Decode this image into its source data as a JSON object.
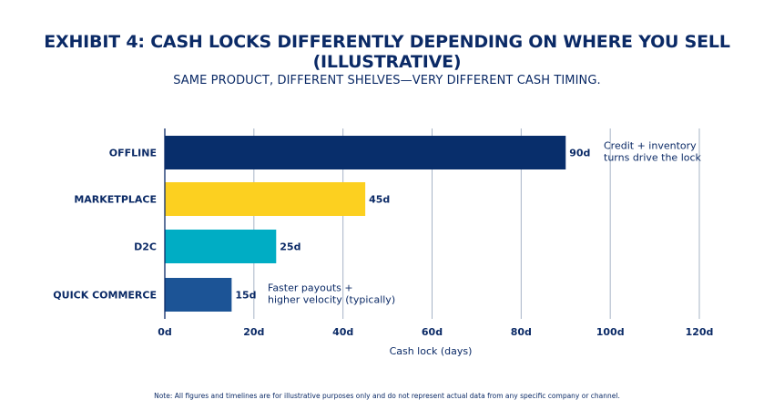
{
  "chart_data": {
    "type": "bar",
    "orientation": "horizontal",
    "title": "EXHIBIT 4: CASH LOCKS DIFFERENTLY DEPENDING ON WHERE YOU SELL (ILLUSTRATIVE)",
    "title_line1": "EXHIBIT 4: CASH LOCKS DIFFERENTLY DEPENDING ON WHERE YOU SELL",
    "title_line2": "(ILLUSTRATIVE)",
    "subtitle": "SAME PRODUCT, DIFFERENT SHELVES—VERY DIFFERENT CASH TIMING.",
    "categories": [
      "OFFLINE",
      "MARKETPLACE",
      "D2C",
      "QUICK COMMERCE"
    ],
    "values": [
      90,
      45,
      25,
      15
    ],
    "value_labels": [
      "90d",
      "45d",
      "25d",
      "15d"
    ],
    "colors": [
      "#082e6b",
      "#fcd020",
      "#00adc4",
      "#1c5496"
    ],
    "xlabel": "Cash lock (days)",
    "ylabel": "",
    "xlim": [
      0,
      120
    ],
    "xticks": [
      0,
      20,
      40,
      60,
      80,
      100,
      120
    ],
    "xtick_labels": [
      "0d",
      "20d",
      "40d",
      "60d",
      "80d",
      "100d",
      "120d"
    ],
    "grid": true,
    "annotations": [
      {
        "category": "OFFLINE",
        "lines": [
          "Credit + inventory",
          "turns drive the lock"
        ]
      },
      {
        "category": "QUICK COMMERCE",
        "lines": [
          "Faster payouts +",
          "higher velocity (typically)"
        ]
      }
    ],
    "note": "Note: All figures and timelines are for illustrative purposes only and do not represent actual data from any specific company or channel."
  }
}
